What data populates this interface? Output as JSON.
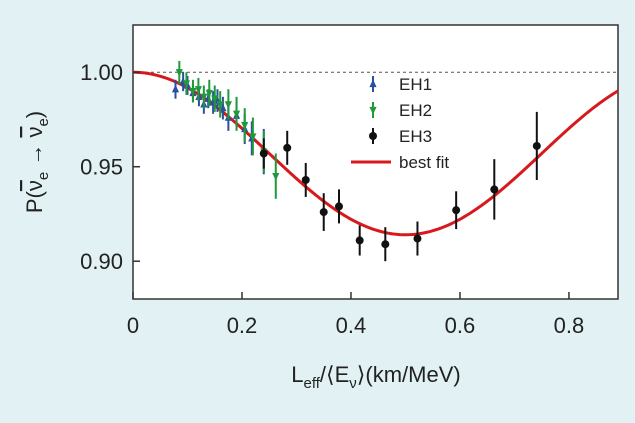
{
  "chart_data": {
    "type": "scatter",
    "xlabel": {
      "main": "L",
      "sub1": "eff",
      "mid": "/⟨E",
      "sub2": "ν",
      "end": "⟩(km/MeV)"
    },
    "ylabel": {
      "pre": "P(",
      "nu1": "ν",
      "sub1": "e",
      "arrow": " → ",
      "nu2": "ν",
      "sub2": "e",
      "post": ")"
    },
    "xlim": [
      0,
      0.89
    ],
    "ylim": [
      0.88,
      1.025
    ],
    "xticks": [
      0,
      0.2,
      0.4,
      0.6,
      0.8
    ],
    "xtick_labels": [
      "0",
      "0.2",
      "0.4",
      "0.6",
      "0.8"
    ],
    "yticks": [
      0.9,
      0.95,
      1.0
    ],
    "ytick_labels": [
      "0.90",
      "0.95",
      "1.00"
    ],
    "reference_line": 1.0,
    "legend_position": "upper-center",
    "colors": {
      "EH1": "#2a4fa0",
      "EH2": "#1f9a3a",
      "EH3": "#111111",
      "best_fit": "#d7191c",
      "background": "#e2f2f4"
    },
    "series": [
      {
        "name": "EH1",
        "marker": "triangle-up",
        "points": [
          [
            0.078,
            0.991,
            0.005
          ],
          [
            0.092,
            0.995,
            0.005
          ],
          [
            0.1,
            0.993,
            0.005
          ],
          [
            0.11,
            0.989,
            0.005
          ],
          [
            0.121,
            0.987,
            0.005
          ],
          [
            0.13,
            0.983,
            0.005
          ],
          [
            0.138,
            0.986,
            0.005
          ],
          [
            0.147,
            0.984,
            0.006
          ],
          [
            0.155,
            0.985,
            0.006
          ],
          [
            0.165,
            0.981,
            0.006
          ],
          [
            0.175,
            0.976,
            0.007
          ],
          [
            0.19,
            0.977,
            0.007
          ],
          [
            0.205,
            0.97,
            0.008
          ],
          [
            0.218,
            0.965,
            0.009
          ],
          [
            0.24,
            0.958,
            0.012
          ]
        ]
      },
      {
        "name": "EH2",
        "marker": "triangle-down",
        "points": [
          [
            0.085,
            1.0,
            0.006
          ],
          [
            0.098,
            0.994,
            0.006
          ],
          [
            0.11,
            0.99,
            0.006
          ],
          [
            0.12,
            0.991,
            0.006
          ],
          [
            0.13,
            0.987,
            0.006
          ],
          [
            0.14,
            0.989,
            0.007
          ],
          [
            0.15,
            0.986,
            0.007
          ],
          [
            0.16,
            0.983,
            0.007
          ],
          [
            0.175,
            0.983,
            0.008
          ],
          [
            0.19,
            0.978,
            0.009
          ],
          [
            0.205,
            0.972,
            0.009
          ],
          [
            0.22,
            0.966,
            0.01
          ],
          [
            0.24,
            0.958,
            0.011
          ],
          [
            0.262,
            0.945,
            0.012
          ]
        ]
      },
      {
        "name": "EH3",
        "marker": "circle",
        "points": [
          [
            0.24,
            0.957,
            0.008
          ],
          [
            0.283,
            0.96,
            0.009
          ],
          [
            0.317,
            0.943,
            0.009
          ],
          [
            0.35,
            0.926,
            0.01
          ],
          [
            0.378,
            0.929,
            0.009
          ],
          [
            0.416,
            0.911,
            0.008
          ],
          [
            0.463,
            0.909,
            0.009
          ],
          [
            0.522,
            0.912,
            0.009
          ],
          [
            0.593,
            0.927,
            0.01
          ],
          [
            0.663,
            0.938,
            0.016
          ],
          [
            0.741,
            0.961,
            0.018
          ]
        ]
      }
    ],
    "fit": {
      "name": "best fit",
      "amplitude": 0.086,
      "x_min_period": 0.5
    }
  }
}
